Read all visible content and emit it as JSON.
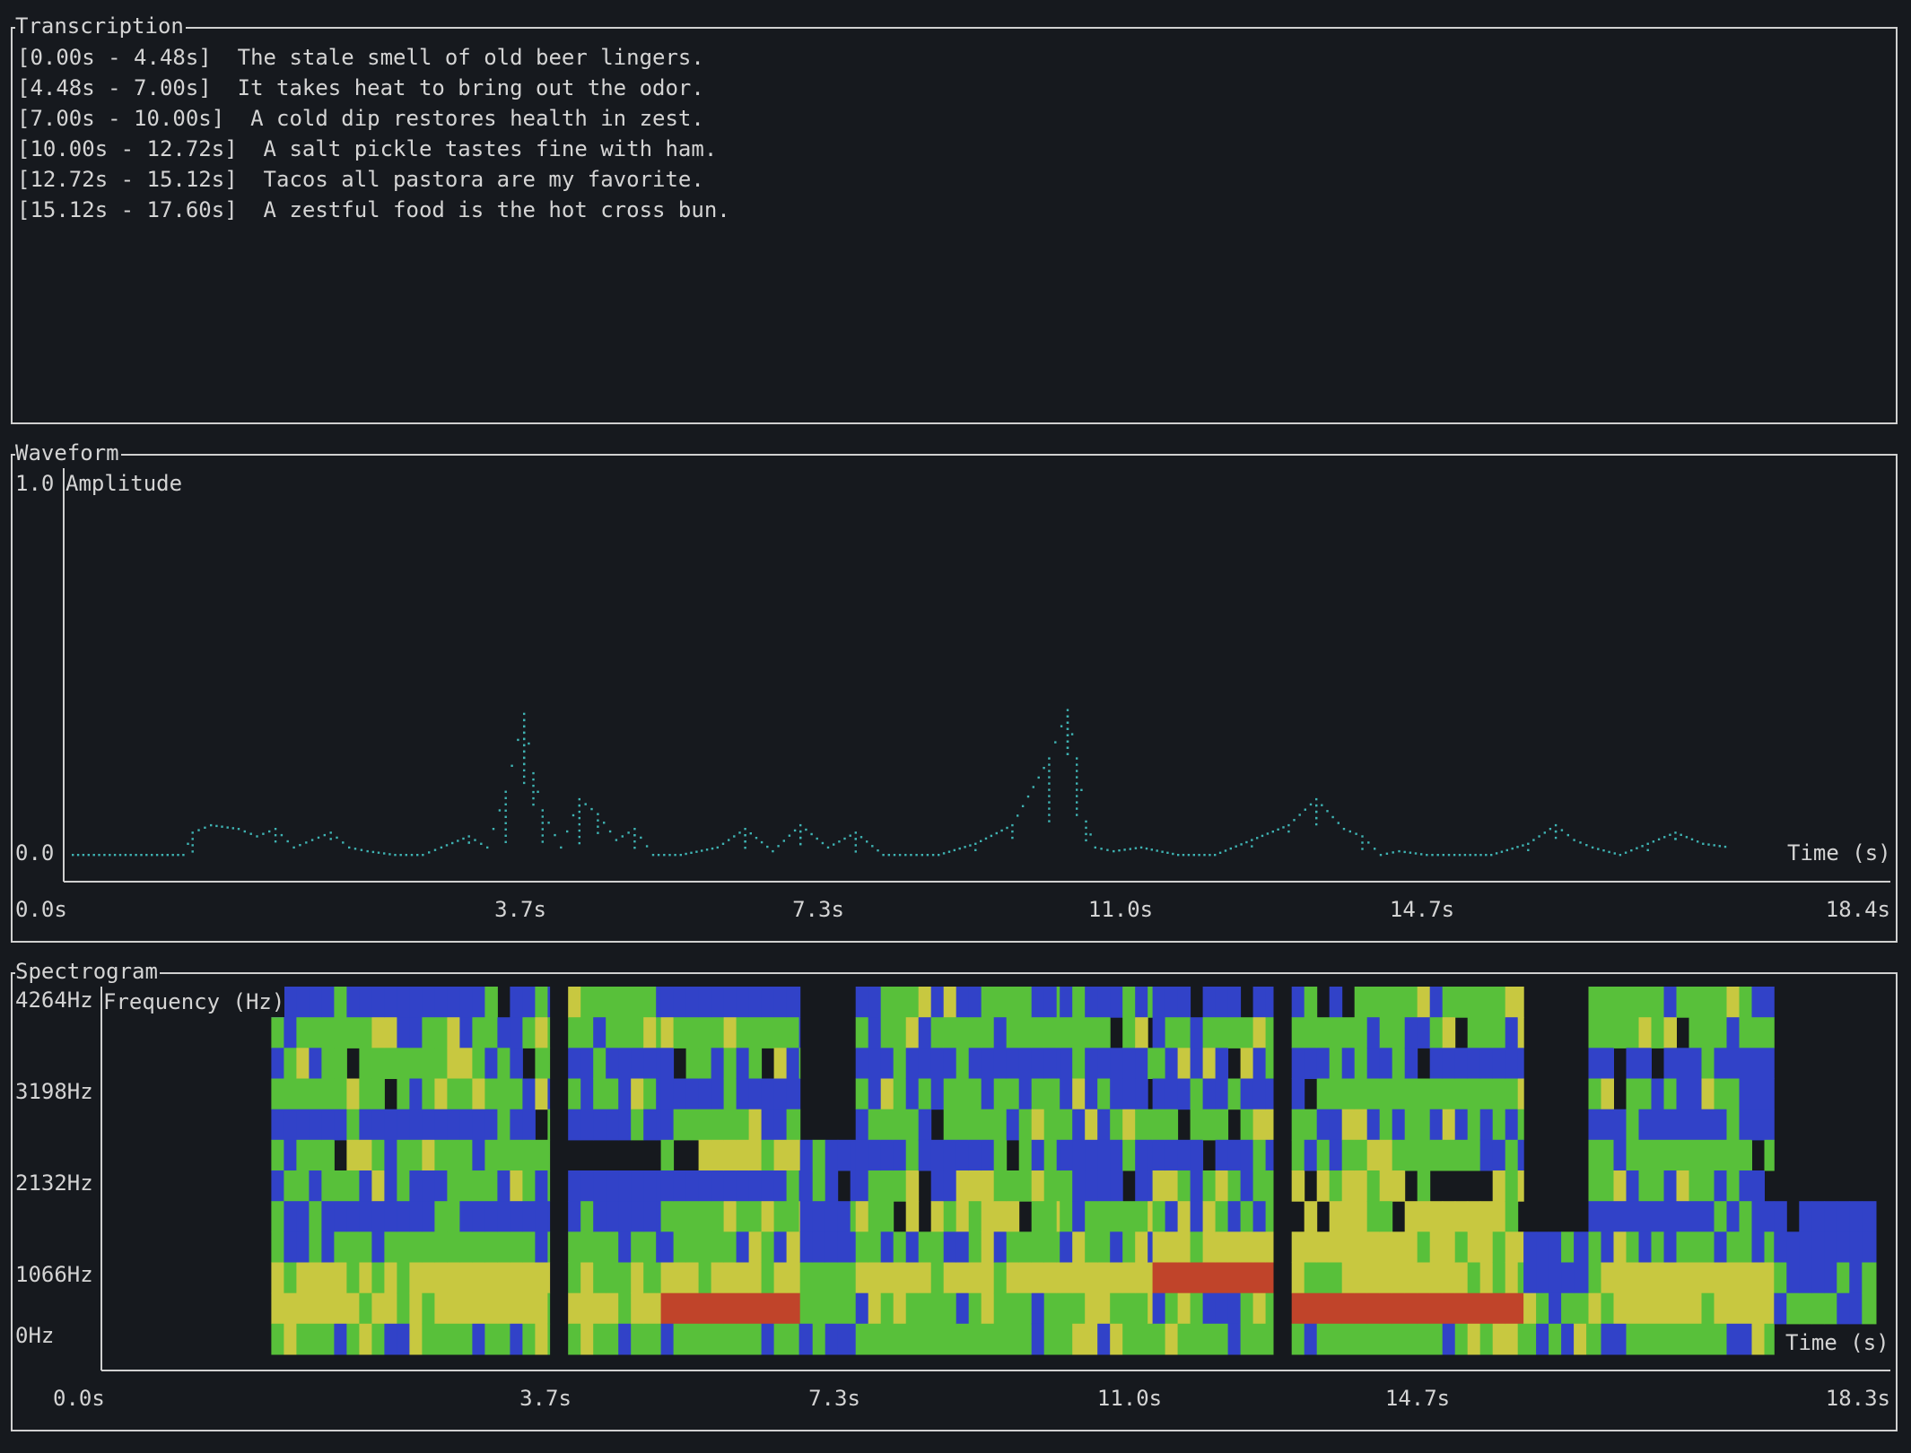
{
  "transcription": {
    "title": "Transcription",
    "segments": [
      {
        "range": "[0.00s - 4.48s]",
        "text": "The stale smell of old beer lingers."
      },
      {
        "range": "[4.48s - 7.00s]",
        "text": "It takes heat to bring out the odor."
      },
      {
        "range": "[7.00s - 10.00s]",
        "text": "A cold dip restores health in zest."
      },
      {
        "range": "[10.00s - 12.72s]",
        "text": "A salt pickle tastes fine with ham."
      },
      {
        "range": "[12.72s - 15.12s]",
        "text": "Tacos all pastora are my favorite."
      },
      {
        "range": "[15.12s - 17.60s]",
        "text": "A zestful food is the hot cross bun."
      }
    ]
  },
  "waveform": {
    "title": "Waveform",
    "y_axis": {
      "label": "Amplitude",
      "max_label": "1.0",
      "min_label": "0.0"
    },
    "x_axis": {
      "label": "Time (s)",
      "ticks": [
        "0.0s",
        "3.7s",
        "7.3s",
        "11.0s",
        "14.7s",
        "18.4s"
      ]
    },
    "color": "#3fb3b3",
    "chart_data": {
      "type": "line",
      "xlabel": "Time (s)",
      "ylabel": "Amplitude",
      "xlim": [
        0,
        18.4
      ],
      "ylim": [
        0,
        1.0
      ],
      "x": [
        0.0,
        0.4,
        0.8,
        1.2,
        1.3,
        1.5,
        1.8,
        2.0,
        2.2,
        2.4,
        2.6,
        2.8,
        3.0,
        3.2,
        3.5,
        3.8,
        4.0,
        4.3,
        4.5,
        4.7,
        4.9,
        5.0,
        5.1,
        5.3,
        5.5,
        5.7,
        5.9,
        6.1,
        6.3,
        6.6,
        7.0,
        7.3,
        7.6,
        7.9,
        8.2,
        8.5,
        8.8,
        9.1,
        9.4,
        9.8,
        10.2,
        10.6,
        10.8,
        10.9,
        11.0,
        11.1,
        11.3,
        11.6,
        12.0,
        12.4,
        12.8,
        13.2,
        13.5,
        13.8,
        14.0,
        14.2,
        14.4,
        14.7,
        15.0,
        15.4,
        15.8,
        16.1,
        16.3,
        16.5,
        16.8,
        17.1,
        17.4,
        17.7,
        18.0
      ],
      "y": [
        0.0,
        0.0,
        0.0,
        0.0,
        0.06,
        0.08,
        0.07,
        0.05,
        0.07,
        0.02,
        0.04,
        0.06,
        0.02,
        0.01,
        0.0,
        0.0,
        0.02,
        0.05,
        0.02,
        0.17,
        0.38,
        0.22,
        0.12,
        0.02,
        0.15,
        0.11,
        0.04,
        0.07,
        0.0,
        0.0,
        0.02,
        0.07,
        0.01,
        0.08,
        0.02,
        0.06,
        0.0,
        0.0,
        0.0,
        0.03,
        0.08,
        0.26,
        0.39,
        0.26,
        0.09,
        0.02,
        0.01,
        0.02,
        0.0,
        0.0,
        0.04,
        0.08,
        0.15,
        0.07,
        0.05,
        0.0,
        0.01,
        0.0,
        0.0,
        0.0,
        0.03,
        0.08,
        0.04,
        0.02,
        0.0,
        0.03,
        0.06,
        0.03,
        0.02
      ]
    }
  },
  "spectrogram": {
    "title": "Spectrogram",
    "y_axis": {
      "label": "Frequency (Hz)",
      "ticks": [
        "4264Hz",
        "3198Hz",
        "2132Hz",
        "1066Hz",
        "0Hz"
      ]
    },
    "x_axis": {
      "label": "Time (s)",
      "ticks": [
        "0.0s",
        "3.7s",
        "7.3s",
        "11.0s",
        "14.7s",
        "18.3s"
      ]
    },
    "palette": {
      "silent": "#16191e",
      "low": "#3142c8",
      "mid": "#58c03a",
      "high": "#c8c840",
      "peak": "#c0442a"
    },
    "chart_data": {
      "type": "heatmap",
      "xlabel": "Time (s)",
      "ylabel": "Frequency (Hz)",
      "xlim": [
        0,
        18.3
      ],
      "ylim": [
        0,
        4264
      ],
      "levels": [
        "silent",
        "low",
        "mid",
        "high",
        "peak"
      ],
      "rows_note": "row 0 = top (highest frequency), 12 rows",
      "bands": [
        {
          "t0": 0.0,
          "t1": 1.0,
          "profile": [
            0,
            0,
            0,
            0,
            0,
            0,
            0,
            0,
            0,
            0,
            0,
            0
          ]
        },
        {
          "t0": 1.0,
          "t1": 4.0,
          "profile": [
            1,
            2,
            2,
            2,
            1,
            2,
            2,
            1,
            2,
            3,
            3,
            2
          ]
        },
        {
          "t0": 4.2,
          "t1": 5.2,
          "profile": [
            2,
            2,
            1,
            2,
            1,
            0,
            1,
            1,
            2,
            2,
            3,
            2
          ]
        },
        {
          "t0": 5.2,
          "t1": 6.7,
          "profile": [
            1,
            2,
            2,
            1,
            2,
            3,
            1,
            2,
            2,
            3,
            4,
            2
          ]
        },
        {
          "t0": 6.7,
          "t1": 7.3,
          "profile": [
            0,
            0,
            0,
            0,
            0,
            1,
            1,
            1,
            1,
            2,
            2,
            1
          ]
        },
        {
          "t0": 7.3,
          "t1": 9.5,
          "profile": [
            2,
            2,
            1,
            2,
            2,
            1,
            2,
            3,
            2,
            3,
            2,
            2
          ]
        },
        {
          "t0": 9.5,
          "t1": 10.5,
          "profile": [
            1,
            2,
            1,
            2,
            2,
            1,
            1,
            2,
            2,
            3,
            2,
            2
          ]
        },
        {
          "t0": 10.5,
          "t1": 11.8,
          "profile": [
            1,
            2,
            2,
            1,
            2,
            1,
            2,
            2,
            3,
            4,
            2,
            2
          ]
        },
        {
          "t0": 12.0,
          "t1": 14.5,
          "profile": [
            2,
            2,
            1,
            2,
            2,
            2,
            3,
            3,
            3,
            3,
            4,
            2
          ]
        },
        {
          "t0": 14.5,
          "t1": 15.2,
          "profile": [
            0,
            0,
            0,
            0,
            0,
            0,
            0,
            0,
            1,
            1,
            2,
            2
          ]
        },
        {
          "t0": 15.2,
          "t1": 17.2,
          "profile": [
            2,
            2,
            1,
            2,
            1,
            2,
            2,
            1,
            2,
            3,
            3,
            2
          ]
        },
        {
          "t0": 17.2,
          "t1": 18.3,
          "profile": [
            0,
            0,
            0,
            0,
            0,
            0,
            0,
            1,
            1,
            1,
            2,
            0
          ]
        }
      ]
    }
  }
}
